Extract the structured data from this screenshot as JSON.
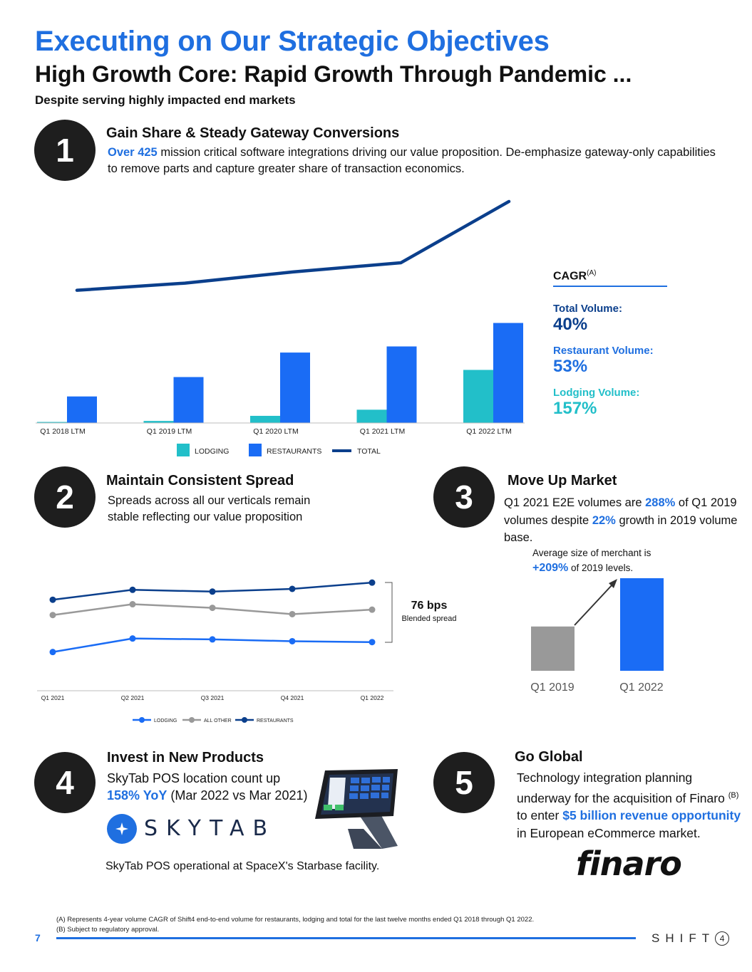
{
  "header": {
    "title": "Executing on Our Strategic Objectives",
    "subtitle": "High Growth Core: Rapid Growth Through Pandemic ...",
    "tagline": "Despite serving highly impacted end markets"
  },
  "section1": {
    "number": "1",
    "title": "Gain Share & Steady Gateway Conversions",
    "highlight": "Over 425",
    "text": " mission critical software integrations driving our value proposition. De-emphasize gateway-only capabilities to remove parts and capture greater share of transaction economics."
  },
  "cagr": {
    "title": "CAGR",
    "superscript": "(A)",
    "items": [
      {
        "label": "Total Volume:",
        "value": "40%",
        "color": "#0b3f8c"
      },
      {
        "label": "Restaurant Volume:",
        "value": "53%",
        "color": "#1f6fe0"
      },
      {
        "label": "Lodging Volume:",
        "value": "157%",
        "color": "#22bfc9"
      }
    ]
  },
  "section2": {
    "number": "2",
    "title": "Maintain Consistent Spread",
    "text": "Spreads across all our verticals remain stable reflecting our value proposition",
    "bracket_value": "76 bps",
    "bracket_label": "Blended spread"
  },
  "section3": {
    "number": "3",
    "title": "Move Up Market",
    "text_a": "Q1 2021 E2E volumes are ",
    "hl_a": "288%",
    "text_b": " of Q1 2019 volumes despite ",
    "hl_b": "22%",
    "text_c": " growth in 2019 volume base.",
    "merchant_text": "Average size of merchant is",
    "merchant_hl": "+209%",
    "merchant_tail": " of 2019 levels."
  },
  "section4": {
    "number": "4",
    "title": "Invest in New Products",
    "text_a": "SkyTab POS location count up",
    "hl": "158% YoY",
    "text_b": " (Mar 2022 vs Mar 2021)",
    "logo_text": "SKYTAB",
    "caption": "SkyTab POS operational at SpaceX's Starbase facility."
  },
  "section5": {
    "number": "5",
    "title": "Go Global",
    "text_a": "Technology integration planning underway for the acquisition of Finaro ",
    "sup": "(B)",
    "text_b": " to enter ",
    "hl": "$5 billion revenue opportunity",
    "text_c": " in European eCommerce market.",
    "logo_text": "finaro"
  },
  "footer": {
    "note_a": "(A) Represents 4-year volume CAGR of Shift4 end-to-end volume for restaurants, lodging and total for the last twelve months ended Q1 2018 through Q1 2022.",
    "note_b": "(B) Subject to regulatory approval.",
    "page": "7",
    "brand": "SHIFT",
    "brand_num": "4"
  },
  "colors": {
    "accent": "#1f6fe0",
    "restaurants": "#1a6cf5",
    "lodging": "#22bfc9",
    "total": "#0b3f8c",
    "all_other": "#999999",
    "grey_bar": "#999999"
  },
  "chart_data": [
    {
      "type": "bar",
      "categories": [
        "Q1 2018 LTM",
        "Q1 2019 LTM",
        "Q1 2020 LTM",
        "Q1 2021 LTM",
        "Q1 2022 LTM"
      ],
      "series": [
        {
          "name": "LODGING",
          "values": [
            1,
            2,
            7,
            13,
            52
          ]
        },
        {
          "name": "RESTAURANTS",
          "values": [
            26,
            45,
            69,
            75,
            98
          ]
        },
        {
          "name": "TOTAL",
          "type": "line",
          "values": [
            130,
            137,
            148,
            157,
            217
          ]
        }
      ],
      "ylim": [
        0,
        240
      ],
      "legend": "bottom"
    },
    {
      "type": "line",
      "categories": [
        "Q1 2021",
        "Q2 2021",
        "Q3 2021",
        "Q4 2021",
        "Q1 2022"
      ],
      "series": [
        {
          "name": "LODGING",
          "values": [
            35,
            50,
            49,
            47,
            46
          ]
        },
        {
          "name": "ALL OTHER",
          "values": [
            76,
            88,
            84,
            77,
            82
          ]
        },
        {
          "name": "RESTAURANTS",
          "values": [
            93,
            104,
            102,
            105,
            112
          ]
        }
      ],
      "ylim": [
        0,
        120
      ],
      "legend": "bottom"
    },
    {
      "type": "bar",
      "categories": [
        "Q1 2019",
        "Q1 2022"
      ],
      "values": [
        100,
        209
      ],
      "ylim": [
        0,
        209
      ]
    }
  ]
}
